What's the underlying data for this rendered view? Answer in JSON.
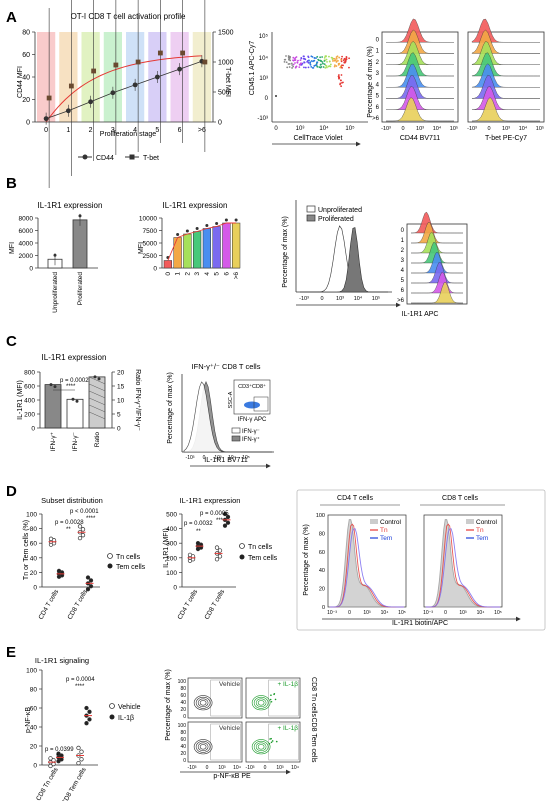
{
  "panels": {
    "A": {
      "letter": "A",
      "chart_title": "OT-I CD8 T cell activation profile",
      "ylabel_left": "CD44 MFI",
      "ylabel_right": "T-bet MFI",
      "xlabel": "Proliferation stage",
      "yticks_left": [
        "0",
        "20",
        "40",
        "60",
        "80"
      ],
      "yticks_right": [
        "0",
        "500",
        "1000",
        "1500"
      ],
      "xticks": [
        "0",
        "1",
        "2",
        "3",
        "4",
        "5",
        "6",
        ">6"
      ],
      "legend": [
        "CD44",
        "T-bet"
      ],
      "flow_ylabel": "CD45.1 APC-Cy7",
      "flow_xlabel": "CellTrace Violet",
      "hist_ylabel": "Percentage of max (%)",
      "hist1_xlabel": "CD44 BV711",
      "hist2_xlabel": "T-bet PE-Cy7",
      "stages": [
        "0",
        "1",
        "2",
        "3",
        "4",
        "5",
        "6",
        ">6"
      ],
      "flow_yticks": [
        "10⁵",
        "10⁴",
        "10³",
        "0",
        "-10³"
      ],
      "flow_xticks": [
        "0",
        "10³",
        "10⁴",
        "10⁵"
      ],
      "hist_xticks": [
        "-10³",
        "0",
        "10³",
        "10⁴",
        "10⁵"
      ]
    },
    "B": {
      "letter": "B",
      "bar_title": "IL-1R1 expression",
      "bar_ylabel": "MFI",
      "bar_yticks": [
        "0",
        "2000",
        "4000",
        "6000",
        "8000"
      ],
      "bar_categories": [
        "Unproliferated",
        "Proliferated"
      ],
      "line_title": "IL-1R1 expression",
      "line_ylabel": "MFI",
      "line_yticks": [
        "0",
        "2500",
        "5000",
        "7500",
        "10000"
      ],
      "line_xticks": [
        "0",
        "1",
        "2",
        "3",
        "4",
        "5",
        "6",
        ">6"
      ],
      "hist_legend": [
        "Unproliferated",
        "Proliferated"
      ],
      "hist_ylabel": "Percentage of max (%)",
      "hist_xlabel": "IL-1R1 APC",
      "hist_xticks": [
        "-10³",
        "0",
        "10³",
        "10⁴",
        "10⁵"
      ],
      "stages": [
        "0",
        "1",
        "2",
        "3",
        "4",
        "5",
        "6",
        ">6"
      ]
    },
    "C": {
      "letter": "C",
      "bar_title": "IL-1R1 expression",
      "ylabel_left": "IL-1R1 (MFI)",
      "ylabel_right": "Ratio IFN-γ⁺/IFN-γ⁻",
      "yticks_left": [
        "0",
        "200",
        "400",
        "600",
        "800"
      ],
      "yticks_right": [
        "0",
        "5",
        "10",
        "15",
        "20"
      ],
      "categories": [
        "IFN-γ⁺",
        "IFN-γ⁻",
        "Ratio"
      ],
      "pvalue": "p = 0.0002",
      "stars": "****",
      "hist_title": "IFN-γ⁺/⁻ CD8 T cells",
      "hist_ylabel": "Percentage of max (%)",
      "hist_xlabel": "IL-1R1 BV711",
      "hist_xticks": [
        "-10³",
        "0",
        "10³",
        "10⁴",
        "10⁵"
      ],
      "hist_legend": [
        "IFN-γ⁻",
        "IFN-γ⁺"
      ],
      "inset_gate": "CD3⁺CD8⁺",
      "inset_y": "SSC-A",
      "inset_x": "IFN-γ APC"
    },
    "D": {
      "letter": "D",
      "subset_title": "Subset distribution",
      "subset_ylabel": "Tn or Tem cells (%)",
      "subset_yticks": [
        "0",
        "20",
        "40",
        "60",
        "80",
        "100"
      ],
      "subset_categories": [
        "CD4 T cells",
        "CD8 T cells"
      ],
      "subset_p1": "p = 0.0028",
      "subset_p2": "p < 0.0001",
      "subset_s1": "**",
      "subset_s2": "****",
      "legend": [
        "Tn cells",
        "Tem cells"
      ],
      "il1_title": "IL-1R1 expression",
      "il1_ylabel": "IL-1R1 (MFI)",
      "il1_yticks": [
        "0",
        "100",
        "200",
        "300",
        "400",
        "500"
      ],
      "il1_categories": [
        "CD4 T cells",
        "CD8 T cells"
      ],
      "il1_p1": "p = 0.0032",
      "il1_p2": "p = 0.0005",
      "il1_s1": "**",
      "il1_s2": "***",
      "hist_titles": [
        "CD4 T cells",
        "CD8 T cells"
      ],
      "hist_legend": [
        "Control",
        "Tn",
        "Tem"
      ],
      "hist_ylabel": "Percentage of max (%)",
      "hist_yticks": [
        "0",
        "20",
        "40",
        "60",
        "80",
        "100"
      ],
      "hist_xticks": [
        "10⁻³",
        "0",
        "10³",
        "10⁴",
        "10⁵"
      ],
      "hist_xlabel": "IL-1R1 biotin/APC"
    },
    "E": {
      "letter": "E",
      "title": "IL-1R1 signaling",
      "ylabel": "p-NF-κB",
      "yticks": [
        "0",
        "20",
        "40",
        "60",
        "80",
        "100"
      ],
      "categories": [
        "CD8 Tn cells",
        "CD8 Tem cells"
      ],
      "p1": "p = 0.0399",
      "p2": "p = 0.0004",
      "s1": "*",
      "s2": "****",
      "legend": [
        "Vehicle",
        "IL-1β"
      ],
      "flow_ylabel": "Percentage of max (%)",
      "flow_yticks": [
        "100",
        "80",
        "60",
        "40",
        "20",
        "0"
      ],
      "flow_xticks": [
        "-10³",
        "0",
        "10³",
        "10⁴"
      ],
      "flow_xlabel": "p-NF-κB PE",
      "vehicle": "Vehicle",
      "il1b": "+ IL-1β",
      "row_labels": [
        "CD8 Tn cells",
        "CD8 Tem cells"
      ]
    }
  },
  "chart_data": [
    {
      "type": "line",
      "panel": "A",
      "title": "OT-I CD8 T cell activation profile",
      "xlabel": "Proliferation stage",
      "ylabel": "CD44 MFI",
      "categories": [
        "0",
        "1",
        "2",
        "3",
        "4",
        "5",
        "6",
        ">6"
      ],
      "series": [
        {
          "name": "CD44",
          "values": [
            3,
            10,
            18,
            26,
            33,
            40,
            47,
            54
          ]
        },
        {
          "name": "T-bet",
          "values": [
            400,
            600,
            850,
            950,
            1000,
            1150,
            1150,
            1000
          ]
        }
      ],
      "ylim": [
        0,
        80
      ],
      "ylim_right": [
        0,
        1500
      ]
    },
    {
      "type": "bar",
      "panel": "B",
      "title": "IL-1R1 expression",
      "ylabel": "MFI",
      "categories": [
        "Unproliferated",
        "Proliferated"
      ],
      "values": [
        1400,
        7700
      ],
      "ylim": [
        0,
        8000
      ]
    },
    {
      "type": "bar",
      "panel": "B",
      "title": "IL-1R1 expression",
      "ylabel": "MFI",
      "categories": [
        "0",
        "1",
        "2",
        "3",
        "4",
        "5",
        "6",
        ">6"
      ],
      "values": [
        1500,
        6100,
        6800,
        7300,
        7900,
        8300,
        9000,
        9000
      ],
      "ylim": [
        0,
        10000
      ]
    },
    {
      "type": "bar",
      "panel": "C",
      "title": "IL-1R1 expression",
      "ylabel": "IL-1R1 (MFI)",
      "categories": [
        "IFN-γ⁺",
        "IFN-γ⁻",
        "Ratio"
      ],
      "values": [
        620,
        410,
        730
      ],
      "ylim": [
        0,
        800
      ]
    },
    {
      "type": "scatter",
      "panel": "D",
      "title": "Subset distribution",
      "ylabel": "Tn or Tem cells (%)",
      "categories": [
        "CD4 T cells",
        "CD8 T cells"
      ],
      "series": [
        {
          "name": "Tn cells",
          "values": [
            62,
            75
          ]
        },
        {
          "name": "Tem cells",
          "values": [
            18,
            5
          ]
        }
      ],
      "ylim": [
        0,
        100
      ]
    },
    {
      "type": "scatter",
      "panel": "D",
      "title": "IL-1R1 expression",
      "ylabel": "IL-1R1 (MFI)",
      "categories": [
        "CD4 T cells",
        "CD8 T cells"
      ],
      "series": [
        {
          "name": "Tn cells",
          "values": [
            200,
            230
          ]
        },
        {
          "name": "Tem cells",
          "values": [
            280,
            460
          ]
        }
      ],
      "ylim": [
        0,
        500
      ]
    },
    {
      "type": "scatter",
      "panel": "E",
      "title": "IL-1R1 signaling",
      "ylabel": "p-NF-κB",
      "categories": [
        "CD8 Tn cells",
        "CD8 Tem cells"
      ],
      "series": [
        {
          "name": "Vehicle",
          "values": [
            3,
            10
          ]
        },
        {
          "name": "IL-1β",
          "values": [
            8,
            52
          ]
        }
      ],
      "ylim": [
        0,
        100
      ]
    }
  ],
  "colors": {
    "rainbow": [
      "#f4a0a0",
      "#f0c890",
      "#c8e890",
      "#9ee6a8",
      "#a8c8f0",
      "#b8a8f0",
      "#e0a8e8",
      "#e8e0a8"
    ],
    "hist_fill": [
      "#f25a5a",
      "#f2a845",
      "#a6e05a",
      "#48c87a",
      "#4a8ef0",
      "#7a6af0",
      "#d45ae8",
      "#e8d05a"
    ],
    "dark": "#555555",
    "red": "#e53935",
    "blue": "#1e3fd8",
    "green": "#1a9a2a"
  }
}
